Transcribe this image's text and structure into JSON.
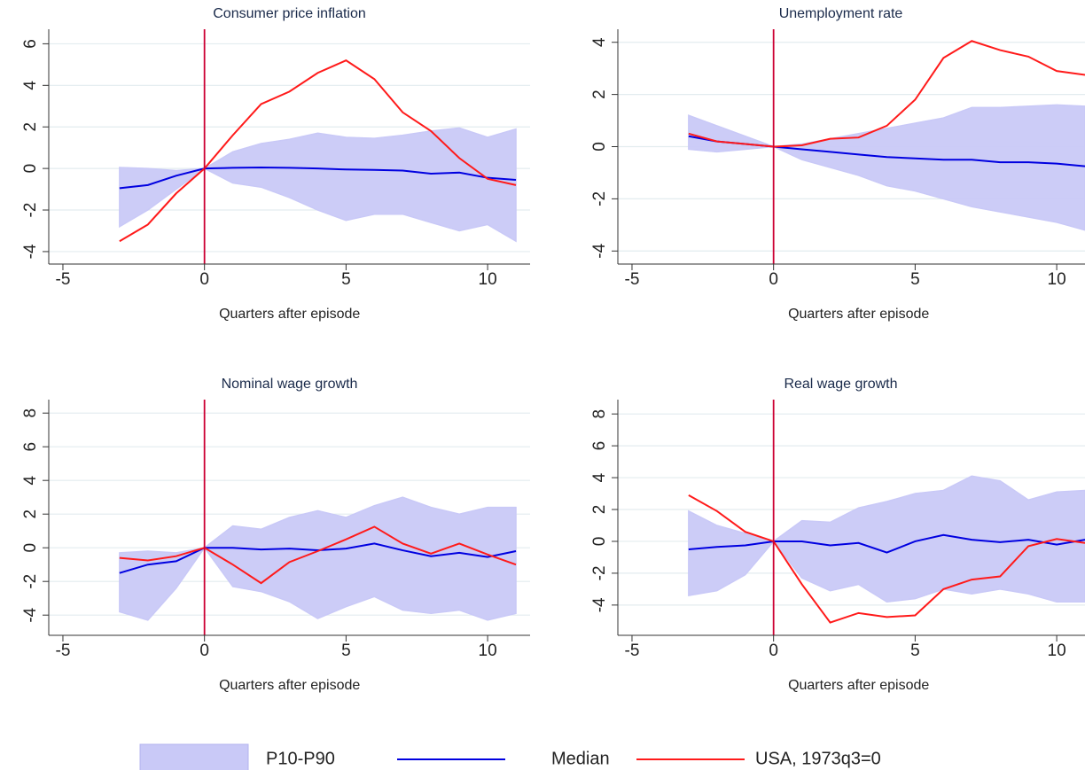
{
  "chart_data": [
    {
      "type": "line",
      "title": "Consumer price inflation",
      "xlabel": "Quarters after episode",
      "x": [
        -3,
        -2,
        -1,
        0,
        1,
        2,
        3,
        4,
        5,
        6,
        7,
        8,
        9,
        10,
        11
      ],
      "xlim": [
        -5.5,
        11.5
      ],
      "xticks": [
        -5,
        0,
        5,
        10
      ],
      "ylim": [
        -4.6,
        6.7
      ],
      "yticks": [
        -4,
        -2,
        0,
        2,
        4,
        6
      ],
      "grid": true,
      "vline": 0,
      "vline_color": "#cc0033",
      "series": [
        {
          "name": "P10-P90",
          "color": "#c9c9f7",
          "low": [
            -2.8,
            -2.0,
            -1.0,
            0,
            -0.7,
            -0.9,
            -1.4,
            -2.0,
            -2.5,
            -2.2,
            -2.2,
            -2.6,
            -3.0,
            -2.7,
            -3.5
          ],
          "high": [
            0.05,
            0.0,
            -0.1,
            0,
            0.8,
            1.2,
            1.4,
            1.7,
            1.5,
            1.45,
            1.6,
            1.8,
            1.95,
            1.5,
            1.9
          ]
        },
        {
          "name": "Median",
          "color": "#0000e0",
          "values": [
            -0.95,
            -0.8,
            -0.35,
            0,
            0.03,
            0.05,
            0.03,
            0,
            -0.05,
            -0.07,
            -0.1,
            -0.25,
            -0.2,
            -0.45,
            -0.55
          ]
        },
        {
          "name": "USA, 1973q3=0",
          "color": "#ff1a1a",
          "values": [
            -3.5,
            -2.7,
            -1.2,
            0,
            1.6,
            3.1,
            3.7,
            4.6,
            5.2,
            4.3,
            2.7,
            1.8,
            0.5,
            -0.5,
            -0.8
          ]
        }
      ]
    },
    {
      "type": "line",
      "title": "Unemployment rate",
      "xlabel": "Quarters after episode",
      "x": [
        -3,
        -2,
        -1,
        0,
        1,
        2,
        3,
        4,
        5,
        6,
        7,
        8,
        9,
        10,
        11
      ],
      "xlim": [
        -5.5,
        11.5
      ],
      "xticks": [
        -5,
        0,
        5,
        10
      ],
      "ylim": [
        -4.5,
        4.5
      ],
      "yticks": [
        -4,
        -2,
        0,
        2,
        4
      ],
      "grid": true,
      "vline": 0,
      "vline_color": "#cc0033",
      "series": [
        {
          "color": "#c9c9f7",
          "low": [
            -0.1,
            -0.2,
            -0.1,
            0,
            -0.5,
            -0.8,
            -1.1,
            -1.5,
            -1.7,
            -2.0,
            -2.3,
            -2.5,
            -2.7,
            -2.9,
            -3.2
          ],
          "high": [
            1.2,
            0.8,
            0.4,
            0,
            0.1,
            0.3,
            0.5,
            0.7,
            0.9,
            1.1,
            1.5,
            1.5,
            1.55,
            1.6,
            1.55
          ]
        },
        {
          "color": "#0000e0",
          "values": [
            0.4,
            0.2,
            0.1,
            0,
            -0.1,
            -0.2,
            -0.3,
            -0.4,
            -0.45,
            -0.5,
            -0.5,
            -0.6,
            -0.6,
            -0.65,
            -0.75
          ]
        },
        {
          "color": "#ff1a1a",
          "values": [
            0.5,
            0.2,
            0.1,
            0,
            0.05,
            0.3,
            0.35,
            0.8,
            1.8,
            3.4,
            4.05,
            3.7,
            3.45,
            2.9,
            2.75
          ]
        }
      ]
    },
    {
      "type": "line",
      "title": "Nominal wage growth",
      "xlabel": "Quarters after episode",
      "x": [
        -3,
        -2,
        -1,
        0,
        1,
        2,
        3,
        4,
        5,
        6,
        7,
        8,
        9,
        10,
        11
      ],
      "xlim": [
        -5.5,
        11.5
      ],
      "xticks": [
        -5,
        0,
        5,
        10
      ],
      "ylim": [
        -5.2,
        8.8
      ],
      "yticks": [
        -4,
        -2,
        0,
        2,
        4,
        6,
        8
      ],
      "grid": true,
      "vline": 0,
      "vline_color": "#cc0033",
      "series": [
        {
          "color": "#c9c9f7",
          "low": [
            -3.8,
            -4.3,
            -2.4,
            0,
            -2.3,
            -2.6,
            -3.2,
            -4.2,
            -3.5,
            -2.9,
            -3.7,
            -3.9,
            -3.7,
            -4.3,
            -3.9
          ],
          "high": [
            -0.3,
            -0.2,
            -0.3,
            0,
            1.3,
            1.1,
            1.8,
            2.2,
            1.8,
            2.5,
            3.0,
            2.4,
            2.0,
            2.4,
            2.4
          ]
        },
        {
          "color": "#0000e0",
          "values": [
            -1.5,
            -1.0,
            -0.8,
            0,
            0,
            -0.1,
            -0.05,
            -0.15,
            -0.05,
            0.25,
            -0.15,
            -0.5,
            -0.3,
            -0.55,
            -0.2
          ]
        },
        {
          "color": "#ff1a1a",
          "values": [
            -0.6,
            -0.75,
            -0.5,
            0,
            -1.0,
            -2.1,
            -0.85,
            -0.2,
            0.5,
            1.25,
            0.25,
            -0.35,
            0.25,
            -0.4,
            -1.0
          ]
        }
      ]
    },
    {
      "type": "line",
      "title": "Real wage growth",
      "xlabel": "Quarters after episode",
      "x": [
        -3,
        -2,
        -1,
        0,
        1,
        2,
        3,
        4,
        5,
        6,
        7,
        8,
        9,
        10,
        11
      ],
      "xlim": [
        -5.5,
        11.5
      ],
      "xticks": [
        -5,
        0,
        5,
        10
      ],
      "ylim": [
        -5.9,
        8.9
      ],
      "yticks": [
        -4,
        -2,
        0,
        2,
        4,
        6,
        8
      ],
      "grid": true,
      "vline": 0,
      "vline_color": "#cc0033",
      "series": [
        {
          "color": "#c9c9f7",
          "low": [
            -3.4,
            -3.1,
            -2.1,
            0,
            -2.3,
            -3.1,
            -2.7,
            -3.8,
            -3.6,
            -3.0,
            -3.3,
            -3.0,
            -3.3,
            -3.8,
            -3.8
          ],
          "high": [
            1.9,
            1.0,
            0.5,
            0,
            1.3,
            1.2,
            2.1,
            2.5,
            3.0,
            3.2,
            4.1,
            3.8,
            2.6,
            3.1,
            3.2
          ]
        },
        {
          "color": "#0000e0",
          "values": [
            -0.5,
            -0.35,
            -0.25,
            0,
            0,
            -0.25,
            -0.1,
            -0.7,
            0,
            0.4,
            0.1,
            -0.05,
            0.1,
            -0.2,
            0.1
          ]
        },
        {
          "color": "#ff1a1a",
          "values": [
            2.9,
            1.9,
            0.6,
            0,
            -2.7,
            -5.1,
            -4.5,
            -4.75,
            -4.65,
            -3.0,
            -2.4,
            -2.2,
            -0.3,
            0.15,
            -0.1
          ]
        }
      ]
    }
  ]
}
